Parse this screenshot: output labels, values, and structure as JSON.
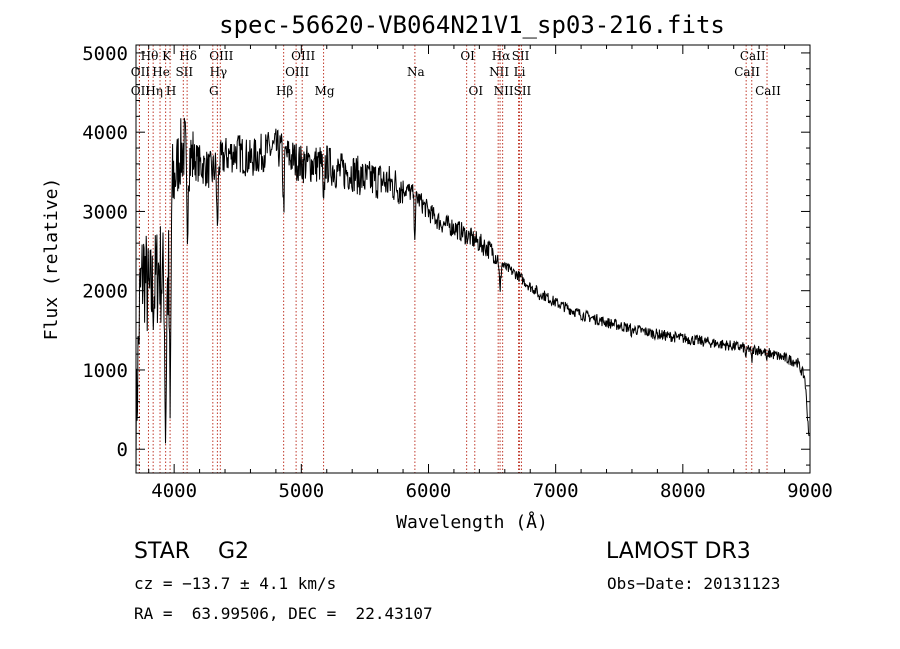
{
  "chart_data": {
    "type": "line",
    "title": "spec-56620-VB064N21V1_sp03-216.fits",
    "xlabel": "Wavelength (Å)",
    "ylabel": "Flux (relative)",
    "xlim": [
      3700,
      9000
    ],
    "ylim": [
      -300,
      5100
    ],
    "x_ticks": [
      4000,
      5000,
      6000,
      7000,
      8000,
      9000
    ],
    "y_ticks": [
      0,
      1000,
      2000,
      3000,
      4000,
      5000
    ],
    "spectrum_anchors": [
      [
        3700,
        200
      ],
      [
        3730,
        1900
      ],
      [
        3760,
        2300
      ],
      [
        3800,
        1900
      ],
      [
        3840,
        2000
      ],
      [
        3880,
        2300
      ],
      [
        3920,
        2100
      ],
      [
        3950,
        2000
      ],
      [
        3990,
        3300
      ],
      [
        4040,
        3700
      ],
      [
        4080,
        3800
      ],
      [
        4120,
        3700
      ],
      [
        4200,
        3600
      ],
      [
        4300,
        3500
      ],
      [
        4400,
        3700
      ],
      [
        4500,
        3750
      ],
      [
        4600,
        3650
      ],
      [
        4700,
        3750
      ],
      [
        4800,
        3800
      ],
      [
        4900,
        3700
      ],
      [
        5000,
        3600
      ],
      [
        5100,
        3600
      ],
      [
        5200,
        3600
      ],
      [
        5300,
        3500
      ],
      [
        5400,
        3500
      ],
      [
        5500,
        3400
      ],
      [
        5600,
        3400
      ],
      [
        5700,
        3350
      ],
      [
        5800,
        3300
      ],
      [
        5900,
        3200
      ],
      [
        6000,
        3000
      ],
      [
        6100,
        2850
      ],
      [
        6200,
        2800
      ],
      [
        6300,
        2700
      ],
      [
        6400,
        2600
      ],
      [
        6500,
        2500
      ],
      [
        6600,
        2300
      ],
      [
        6700,
        2200
      ],
      [
        6800,
        2050
      ],
      [
        6900,
        1950
      ],
      [
        7000,
        1850
      ],
      [
        7200,
        1700
      ],
      [
        7400,
        1600
      ],
      [
        7600,
        1520
      ],
      [
        7800,
        1450
      ],
      [
        8000,
        1400
      ],
      [
        8200,
        1350
      ],
      [
        8400,
        1300
      ],
      [
        8600,
        1250
      ],
      [
        8800,
        1150
      ],
      [
        8900,
        1100
      ],
      [
        8960,
        900
      ],
      [
        8990,
        200
      ]
    ],
    "spectrum_dips": [
      [
        3933,
        100
      ],
      [
        3968,
        200
      ],
      [
        4102,
        2600
      ],
      [
        4340,
        2700
      ],
      [
        4861,
        3000
      ],
      [
        5175,
        2900
      ],
      [
        5893,
        2700
      ],
      [
        6563,
        1900
      ],
      [
        6870,
        1900
      ],
      [
        7600,
        1450
      ],
      [
        8498,
        1150
      ],
      [
        8542,
        1100
      ],
      [
        8662,
        1100
      ]
    ],
    "line_markers": [
      {
        "label": "Hθ",
        "x": 3798,
        "row": 0
      },
      {
        "label": "OII",
        "x": 3727,
        "row": 1
      },
      {
        "label": "OII",
        "x": 3727,
        "row": 2
      },
      {
        "label": "Hη",
        "x": 3835,
        "row": 2
      },
      {
        "label": "He",
        "x": 3889,
        "row": 1
      },
      {
        "label": "K",
        "x": 3933,
        "row": 0
      },
      {
        "label": "H",
        "x": 3968,
        "row": 2
      },
      {
        "label": "SII",
        "x": 4072,
        "row": 1
      },
      {
        "label": "Hδ",
        "x": 4102,
        "row": 0
      },
      {
        "label": "OIII",
        "x": 4363,
        "row": 0
      },
      {
        "label": "Hγ",
        "x": 4340,
        "row": 1
      },
      {
        "label": "G",
        "x": 4304,
        "row": 2
      },
      {
        "label": "Hβ",
        "x": 4861,
        "row": 2
      },
      {
        "label": "OIII",
        "x": 5007,
        "row": 0
      },
      {
        "label": "OIII",
        "x": 4959,
        "row": 1
      },
      {
        "label": "Mg",
        "x": 5175,
        "row": 2
      },
      {
        "label": "Na",
        "x": 5893,
        "row": 1
      },
      {
        "label": "OI",
        "x": 6300,
        "row": 0
      },
      {
        "label": "OI",
        "x": 6364,
        "row": 2
      },
      {
        "label": "Hα",
        "x": 6563,
        "row": 0
      },
      {
        "label": "NII",
        "x": 6548,
        "row": 1
      },
      {
        "label": "NII",
        "x": 6583,
        "row": 2
      },
      {
        "label": "SII",
        "x": 6716,
        "row": 0
      },
      {
        "label": "Li",
        "x": 6708,
        "row": 1
      },
      {
        "label": "SII",
        "x": 6731,
        "row": 2
      },
      {
        "label": "CaII",
        "x": 8542,
        "row": 0
      },
      {
        "label": "CaII",
        "x": 8498,
        "row": 1
      },
      {
        "label": "CaII",
        "x": 8662,
        "row": 2
      }
    ]
  },
  "footer": {
    "object": "STAR    G2",
    "survey": "LAMOST DR3",
    "redshift": "cz = −13.7 ± 4.1 km/s",
    "obs_date": "Obs−Date: 20131123",
    "coords": "RA =  63.99506, DEC =  22.43107"
  }
}
